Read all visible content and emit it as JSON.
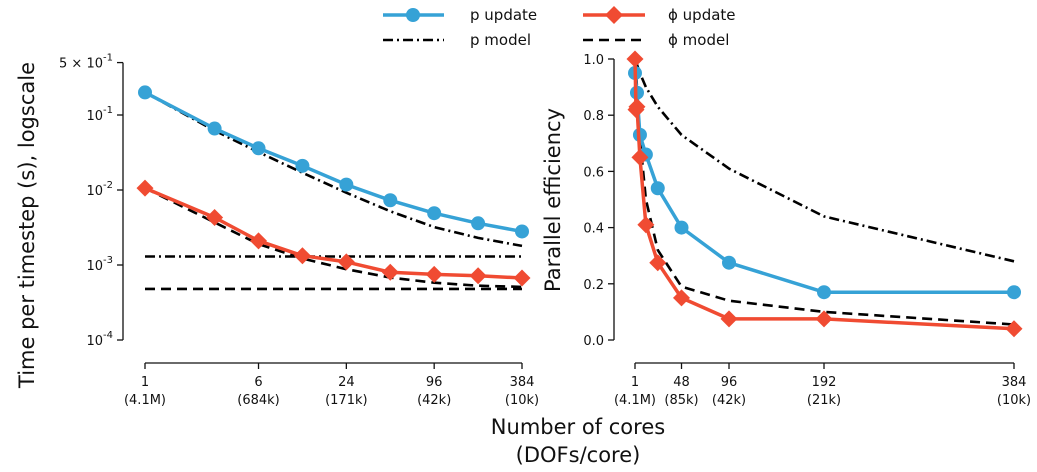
{
  "colors": {
    "p_update": "#36a2d6",
    "phi_update": "#f04b32",
    "model": "#000000"
  },
  "legend": {
    "p_update": "p update",
    "phi_update": "ϕ update",
    "p_model": "p model",
    "phi_model": "ϕ model"
  },
  "xlabel": [
    "Number of cores",
    "(DOFs/core)"
  ],
  "chart_data": [
    {
      "type": "line",
      "ylabel": "Time per timestep (s), logscale",
      "yscale": "log",
      "xscale": "log",
      "xlim": [
        1,
        384
      ],
      "ylim": [
        0.0001,
        0.5
      ],
      "xticks": [
        {
          "value": 1,
          "label": "1",
          "sublabel": "(4.1M)"
        },
        {
          "value": 6,
          "label": "6",
          "sublabel": "(684k)"
        },
        {
          "value": 24,
          "label": "24",
          "sublabel": "(171k)"
        },
        {
          "value": 96,
          "label": "96",
          "sublabel": "(42k)"
        },
        {
          "value": 384,
          "label": "384",
          "sublabel": "(10k)"
        }
      ],
      "yticks": [
        {
          "value": 0.5,
          "label": "5 × 10",
          "exp": "-1"
        },
        {
          "value": 0.1,
          "label": "10",
          "exp": "-1"
        },
        {
          "value": 0.01,
          "label": "10",
          "exp": "-2"
        },
        {
          "value": 0.001,
          "label": "10",
          "exp": "-3"
        },
        {
          "value": 0.0001,
          "label": "10",
          "exp": "-4"
        }
      ],
      "series": [
        {
          "key": "p_update",
          "style": "solid-circle",
          "x": [
            1,
            3,
            6,
            12,
            24,
            48,
            96,
            192,
            384
          ],
          "y": [
            0.2,
            0.066,
            0.036,
            0.021,
            0.0118,
            0.0073,
            0.0049,
            0.0036,
            0.0028
          ]
        },
        {
          "key": "phi_update",
          "style": "solid-diamond",
          "x": [
            1,
            3,
            6,
            12,
            24,
            48,
            96,
            192,
            384
          ],
          "y": [
            0.0106,
            0.0043,
            0.0021,
            0.00133,
            0.0011,
            0.0008,
            0.00075,
            0.00072,
            0.00067
          ]
        },
        {
          "key": "p_model",
          "style": "dashdot",
          "x": [
            1,
            3,
            6,
            12,
            24,
            48,
            96,
            192,
            384
          ],
          "y": [
            0.2,
            0.062,
            0.032,
            0.017,
            0.0092,
            0.0052,
            0.0032,
            0.0023,
            0.0018
          ]
        },
        {
          "key": "phi_model",
          "style": "dashed",
          "x": [
            1,
            3,
            6,
            12,
            24,
            48,
            96,
            192,
            384
          ],
          "y": [
            0.0106,
            0.0037,
            0.0019,
            0.00122,
            0.00088,
            0.00068,
            0.00058,
            0.00053,
            0.00051
          ]
        },
        {
          "key": "p_model_floor",
          "style": "dashdot",
          "x": [
            1,
            384
          ],
          "y": [
            0.0013,
            0.0013
          ]
        },
        {
          "key": "phi_model_floor",
          "style": "dashed",
          "x": [
            1,
            384
          ],
          "y": [
            0.00048,
            0.00048
          ]
        }
      ]
    },
    {
      "type": "line",
      "ylabel": "Parallel efficiency",
      "yscale": "linear",
      "xscale": "linear",
      "xlim": [
        1,
        384
      ],
      "ylim": [
        0,
        1
      ],
      "xticks": [
        {
          "value": 1,
          "label": "1",
          "sublabel": "(4.1M)"
        },
        {
          "value": 48,
          "label": "48",
          "sublabel": "(85k)"
        },
        {
          "value": 96,
          "label": "96",
          "sublabel": "(42k)"
        },
        {
          "value": 192,
          "label": "192",
          "sublabel": "(21k)"
        },
        {
          "value": 384,
          "label": "384",
          "sublabel": "(10k)"
        }
      ],
      "yticks": [
        {
          "value": 0,
          "label": "0.0"
        },
        {
          "value": 0.2,
          "label": "0.2"
        },
        {
          "value": 0.4,
          "label": "0.4"
        },
        {
          "value": 0.6,
          "label": "0.6"
        },
        {
          "value": 0.8,
          "label": "0.8"
        },
        {
          "value": 1,
          "label": "1.0"
        }
      ],
      "series": [
        {
          "key": "p_update",
          "style": "solid-circle",
          "x": [
            1,
            3,
            6,
            12,
            24,
            48,
            96,
            192,
            384
          ],
          "y": [
            0.95,
            0.88,
            0.73,
            0.66,
            0.54,
            0.4,
            0.275,
            0.17,
            0.17
          ]
        },
        {
          "key": "phi_update",
          "style": "solid-diamond",
          "x": [
            1,
            2,
            3,
            6,
            12,
            24,
            48,
            96,
            192,
            384
          ],
          "y": [
            1.0,
            0.82,
            0.83,
            0.65,
            0.41,
            0.275,
            0.15,
            0.075,
            0.075,
            0.04
          ]
        },
        {
          "key": "p_model",
          "style": "dashdot",
          "x": [
            1,
            3,
            6,
            12,
            24,
            48,
            96,
            192,
            384
          ],
          "y": [
            1.0,
            0.98,
            0.95,
            0.9,
            0.83,
            0.73,
            0.61,
            0.44,
            0.28
          ]
        },
        {
          "key": "phi_model",
          "style": "dashed",
          "x": [
            1,
            3,
            6,
            12,
            24,
            48,
            96,
            192,
            384
          ],
          "y": [
            1.0,
            0.9,
            0.72,
            0.5,
            0.32,
            0.19,
            0.14,
            0.1,
            0.055
          ]
        }
      ]
    }
  ]
}
